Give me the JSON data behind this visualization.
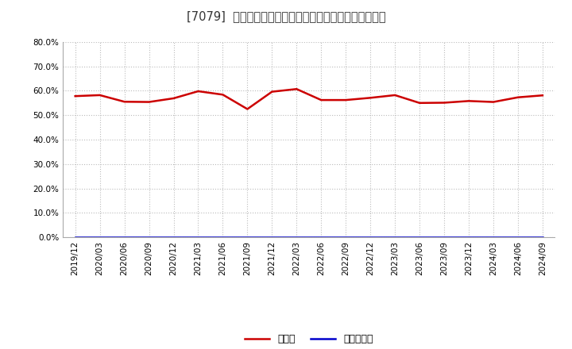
{
  "title": "[7079]  現預金、有利子負債の総資産に対する比率の推移",
  "x_labels": [
    "2019/12",
    "2020/03",
    "2020/06",
    "2020/09",
    "2020/12",
    "2021/03",
    "2021/06",
    "2021/09",
    "2021/12",
    "2022/03",
    "2022/06",
    "2022/09",
    "2022/12",
    "2023/03",
    "2023/06",
    "2023/09",
    "2023/12",
    "2024/03",
    "2024/06",
    "2024/09"
  ],
  "cash_values": [
    0.578,
    0.582,
    0.555,
    0.554,
    0.569,
    0.598,
    0.584,
    0.525,
    0.596,
    0.607,
    0.562,
    0.562,
    0.571,
    0.582,
    0.55,
    0.551,
    0.558,
    0.554,
    0.573,
    0.581
  ],
  "debt_values": [
    0.001,
    0.001,
    0.001,
    0.001,
    0.001,
    0.001,
    0.001,
    0.001,
    0.001,
    0.001,
    0.001,
    0.001,
    0.001,
    0.001,
    0.001,
    0.001,
    0.001,
    0.001,
    0.001,
    0.001
  ],
  "cash_color": "#cc0000",
  "debt_color": "#0000cc",
  "ylim_min": 0.0,
  "ylim_max": 0.8,
  "yticks": [
    0.0,
    0.1,
    0.2,
    0.3,
    0.4,
    0.5,
    0.6,
    0.7,
    0.8
  ],
  "figure_bg": "#ffffff",
  "axes_bg": "#ffffff",
  "grid_color": "#bbbbbb",
  "legend_cash": "現預金",
  "legend_debt": "有利子負債",
  "line_width": 1.8,
  "title_fontsize": 10.5,
  "tick_fontsize": 7.5,
  "legend_fontsize": 9
}
